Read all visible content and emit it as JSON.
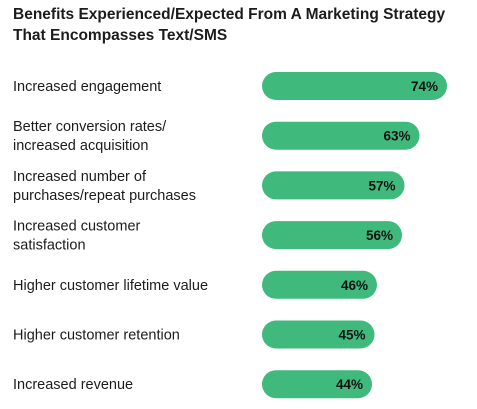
{
  "chart_data": {
    "type": "bar",
    "orientation": "horizontal",
    "title": "Benefits Experienced/Expected From A Marketing Strategy That Encompasses Text/SMS",
    "categories": [
      [
        "Increased engagement"
      ],
      [
        "Better conversion rates/",
        "increased acquisition"
      ],
      [
        "Increased number of",
        "purchases/repeat purchases"
      ],
      [
        "Increased customer",
        "satisfaction"
      ],
      [
        "Higher customer lifetime value"
      ],
      [
        "Higher customer retention"
      ],
      [
        "Increased revenue"
      ]
    ],
    "values": [
      74,
      63,
      57,
      56,
      46,
      45,
      44
    ],
    "value_labels": [
      "74%",
      "63%",
      "57%",
      "56%",
      "46%",
      "45%",
      "44%"
    ],
    "unit": "%",
    "bar_color": "#3fba7c",
    "xlabel": "",
    "ylabel": "",
    "xlim": [
      0,
      100
    ],
    "grid": false,
    "legend": "none"
  }
}
